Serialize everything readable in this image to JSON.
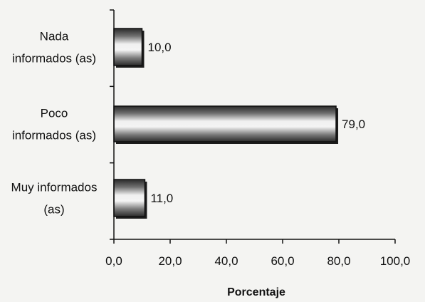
{
  "chart_data": {
    "type": "bar",
    "orientation": "horizontal",
    "categories": [
      [
        "Nada",
        "informados (as)"
      ],
      [
        "Poco",
        "informados (as)"
      ],
      [
        "Muy informados",
        "(as)"
      ]
    ],
    "values": [
      10.0,
      79.0,
      11.0
    ],
    "value_labels": [
      "10,0",
      "79,0",
      "11,0"
    ],
    "xlabel": "Porcentaje",
    "ylabel": "",
    "xlim": [
      0,
      100
    ],
    "xticks": [
      0,
      20,
      40,
      60,
      80,
      100
    ],
    "xtick_labels": [
      "0,0",
      "20,0",
      "40,0",
      "60,0",
      "80,0",
      "100,0"
    ],
    "grid": false,
    "legend": "none",
    "colors": {
      "bar_dark": "#2b2b2b",
      "bar_mid": "#8a8a8a",
      "bar_light": "#f2f2f2",
      "axis": "#111111"
    }
  }
}
